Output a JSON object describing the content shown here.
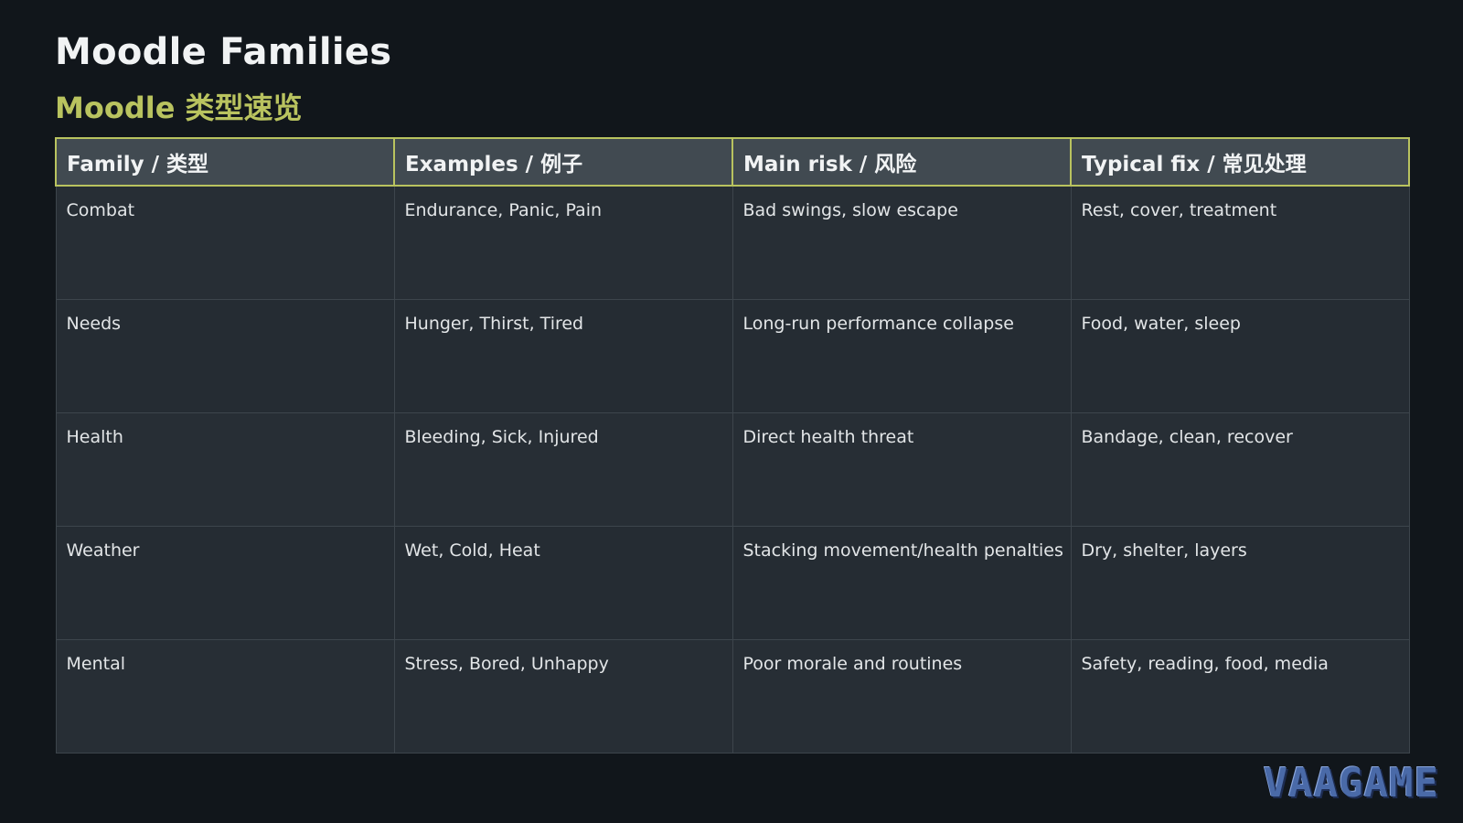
{
  "page": {
    "title": "Moodle Families",
    "subtitle": "Moodle 类型速览"
  },
  "table": {
    "headers": [
      "Family / 类型",
      "Examples / 例子",
      "Main risk / 风险",
      "Typical fix / 常见处理"
    ],
    "rows": [
      [
        "Combat",
        "Endurance, Panic, Pain",
        "Bad swings, slow escape",
        "Rest, cover, treatment"
      ],
      [
        "Needs",
        "Hunger, Thirst, Tired",
        "Long-run performance collapse",
        "Food, water, sleep"
      ],
      [
        "Health",
        "Bleeding, Sick, Injured",
        "Direct health threat",
        "Bandage, clean, recover"
      ],
      [
        "Weather",
        "Wet, Cold, Heat",
        "Stacking movement/health penalties",
        "Dry, shelter, layers"
      ],
      [
        "Mental",
        "Stress, Bored, Unhappy",
        "Poor morale and routines",
        "Safety, reading, food, media"
      ]
    ]
  },
  "logo": {
    "text": "VAAGAME"
  },
  "colors": {
    "background": "#11161b",
    "accent": "#b9c35f",
    "header_bg": "#414a51",
    "cell_bg": "#272e35"
  }
}
